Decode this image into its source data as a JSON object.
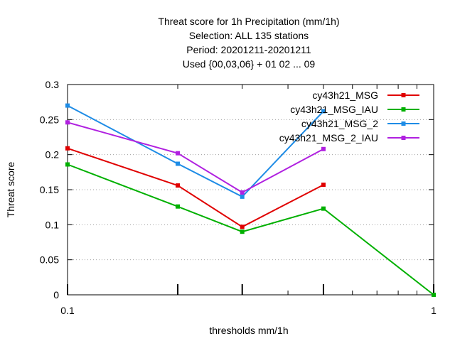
{
  "chart_data": {
    "type": "line",
    "title_lines": [
      "Threat score  for 1h Precipitation (mm/1h)",
      "Selection: ALL     135 stations",
      "Period: 20201211-20201211",
      "Used {00,03,06} + 01 02 ... 09"
    ],
    "xlabel": "thresholds mm/1h",
    "ylabel": "Threat score",
    "x_scale": "log",
    "xlim": [
      0.1,
      1
    ],
    "ylim": [
      0,
      0.3
    ],
    "x_ticks": [
      0.1,
      1
    ],
    "x_tick_labels": [
      "0.1",
      "1"
    ],
    "y_ticks": [
      0,
      0.05,
      0.1,
      0.15,
      0.2,
      0.25,
      0.3
    ],
    "y_tick_labels": [
      "0",
      "0.05",
      "0.1",
      "0.15",
      "0.2",
      "0.25",
      "0.3"
    ],
    "grid": true,
    "legend_position": "top-right",
    "series": [
      {
        "name": "cy43h21_MSG",
        "color": "#e00000",
        "x": [
          0.1,
          0.2,
          0.3,
          0.5
        ],
        "y": [
          0.209,
          0.156,
          0.097,
          0.157
        ]
      },
      {
        "name": "cy43h21_MSG_IAU",
        "color": "#00b000",
        "x": [
          0.1,
          0.2,
          0.3,
          0.5,
          1.0
        ],
        "y": [
          0.186,
          0.126,
          0.09,
          0.123,
          0.0
        ]
      },
      {
        "name": "cy43h21_MSG_2",
        "color": "#1e8ce6",
        "x": [
          0.1,
          0.2,
          0.3,
          0.5
        ],
        "y": [
          0.27,
          0.187,
          0.14,
          0.262
        ]
      },
      {
        "name": "cy43h21_MSG_2_IAU",
        "color": "#b020e0",
        "x": [
          0.1,
          0.2,
          0.3,
          0.5
        ],
        "y": [
          0.246,
          0.202,
          0.146,
          0.208
        ]
      }
    ]
  }
}
